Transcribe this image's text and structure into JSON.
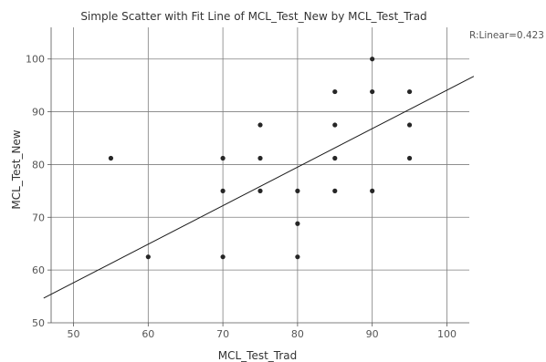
{
  "chart_data": {
    "type": "scatter",
    "title": "Simple Scatter with Fit Line of MCL_Test_New by MCL_Test_Trad",
    "xlabel": "MCL_Test_Trad",
    "ylabel": "MCL_Test_New",
    "xlim": [
      47,
      103
    ],
    "ylim": [
      50,
      106
    ],
    "xticks": [
      50,
      60,
      70,
      80,
      90,
      100
    ],
    "yticks": [
      50,
      60,
      70,
      80,
      90,
      100
    ],
    "x_tick_labels": [
      "50",
      "60",
      "70",
      "80",
      "90",
      "100"
    ],
    "y_tick_labels": [
      "50",
      "60",
      "70",
      "80",
      "90",
      "100"
    ],
    "grid": true,
    "annotation": "R:Linear=0.423",
    "point_color": "#262626",
    "points": [
      {
        "x": 55,
        "y": 81.2
      },
      {
        "x": 60,
        "y": 62.5
      },
      {
        "x": 70,
        "y": 81.2
      },
      {
        "x": 70,
        "y": 75
      },
      {
        "x": 70,
        "y": 62.5
      },
      {
        "x": 75,
        "y": 87.5
      },
      {
        "x": 75,
        "y": 81.2
      },
      {
        "x": 75,
        "y": 75
      },
      {
        "x": 80,
        "y": 75
      },
      {
        "x": 80,
        "y": 68.8
      },
      {
        "x": 80,
        "y": 62.5
      },
      {
        "x": 85,
        "y": 93.8
      },
      {
        "x": 85,
        "y": 87.5
      },
      {
        "x": 85,
        "y": 81.2
      },
      {
        "x": 85,
        "y": 75
      },
      {
        "x": 90,
        "y": 100
      },
      {
        "x": 90,
        "y": 93.8
      },
      {
        "x": 90,
        "y": 75
      },
      {
        "x": 95,
        "y": 93.8
      },
      {
        "x": 95,
        "y": 87.5
      },
      {
        "x": 95,
        "y": 81.2
      }
    ],
    "fit_line": {
      "slope": 0.73,
      "intercept": 21.1
    }
  }
}
